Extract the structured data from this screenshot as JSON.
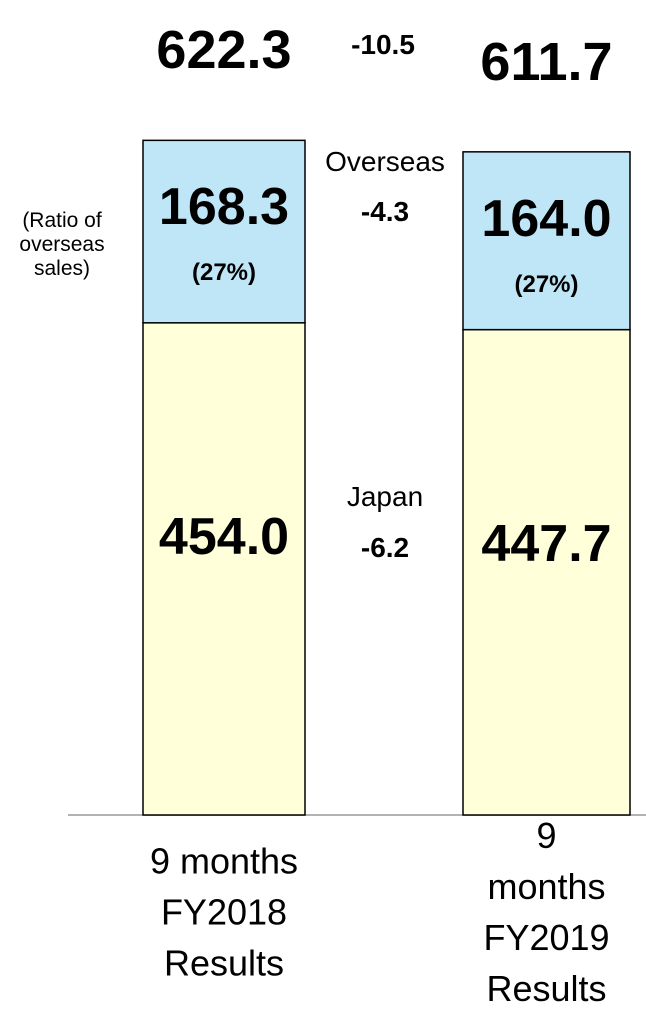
{
  "chart_data": {
    "type": "stacked_bar",
    "categories": [
      "9 months\nFY2018\nResults",
      "9 months\nFY2019\nResults"
    ],
    "series": [
      {
        "name": "Japan",
        "color": "#ffffd9",
        "values": [
          454.0,
          447.7
        ],
        "value_labels": [
          "454.0",
          "447.7"
        ],
        "change": -6.2
      },
      {
        "name": "Overseas",
        "color": "#bfe6f6",
        "values": [
          168.3,
          164.0
        ],
        "value_labels": [
          "168.3",
          "164.0"
        ],
        "change": -4.3,
        "ratios": [
          27,
          27
        ],
        "ratio_labels": [
          "(27%)",
          "(27%)"
        ]
      }
    ],
    "totals": [
      622.3,
      611.7
    ],
    "total_change": -10.5,
    "ratio_note": "(Ratio of\noverseas\nsales)",
    "ylim": [
      0,
      630
    ]
  }
}
